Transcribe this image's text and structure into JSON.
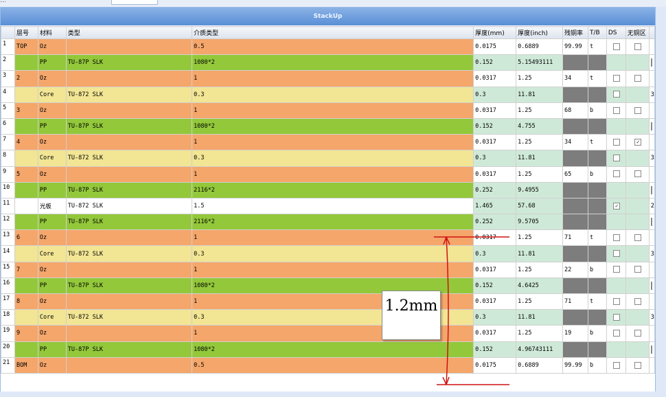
{
  "topbar": {
    "text": "…"
  },
  "panel": {
    "title": "StackUp"
  },
  "columns": [
    "",
    "层号",
    "材料",
    "类型",
    "介质类型",
    "厚度(mm)",
    "厚度(inch)",
    "残铜率",
    "T/B",
    "DS",
    "无铜区",
    ""
  ],
  "rows": [
    {
      "no": "1",
      "layer": "TOP",
      "mat": "Oz",
      "kind": "",
      "diel": "0.5",
      "tmm": "0.0175",
      "tin": "0.6889",
      "cu": "99.99",
      "tb": "t",
      "ds": false,
      "free": false,
      "type": "Oz"
    },
    {
      "no": "2",
      "layer": "",
      "mat": "PP",
      "kind": "TU-87P SLK",
      "diel": "1080*2",
      "tmm": "0.152",
      "tin": "5.15493111",
      "cu": "",
      "tb": "",
      "ds": null,
      "free": null,
      "type": "PP"
    },
    {
      "no": "3",
      "layer": "2",
      "mat": "Oz",
      "kind": "",
      "diel": "1",
      "tmm": "0.0317",
      "tin": "1.25",
      "cu": "34",
      "tb": "t",
      "ds": false,
      "free": false,
      "type": "Oz"
    },
    {
      "no": "4",
      "layer": "",
      "mat": "Core",
      "kind": "TU-872 SLK",
      "diel": "0.3",
      "tmm": "0.3",
      "tin": "11.81",
      "cu": "",
      "tb": "",
      "ds": false,
      "free": null,
      "type": "Core",
      "last": "3"
    },
    {
      "no": "5",
      "layer": "3",
      "mat": "Oz",
      "kind": "",
      "diel": "1",
      "tmm": "0.0317",
      "tin": "1.25",
      "cu": "68",
      "tb": "b",
      "ds": false,
      "free": false,
      "type": "Oz"
    },
    {
      "no": "6",
      "layer": "",
      "mat": "PP",
      "kind": "TU-87P SLK",
      "diel": "1080*2",
      "tmm": "0.152",
      "tin": "4.755",
      "cu": "",
      "tb": "",
      "ds": null,
      "free": null,
      "type": "PP"
    },
    {
      "no": "7",
      "layer": "4",
      "mat": "Oz",
      "kind": "",
      "diel": "1",
      "tmm": "0.0317",
      "tin": "1.25",
      "cu": "34",
      "tb": "t",
      "ds": false,
      "free": true,
      "type": "Oz"
    },
    {
      "no": "8",
      "layer": "",
      "mat": "Core",
      "kind": "TU-872 SLK",
      "diel": "0.3",
      "tmm": "0.3",
      "tin": "11.81",
      "cu": "",
      "tb": "",
      "ds": false,
      "free": null,
      "type": "Core",
      "last": "3"
    },
    {
      "no": "9",
      "layer": "5",
      "mat": "Oz",
      "kind": "",
      "diel": "1",
      "tmm": "0.0317",
      "tin": "1.25",
      "cu": "65",
      "tb": "b",
      "ds": false,
      "free": false,
      "type": "Oz"
    },
    {
      "no": "10",
      "layer": "",
      "mat": "PP",
      "kind": "TU-87P SLK",
      "diel": "2116*2",
      "tmm": "0.252",
      "tin": "9.4955",
      "cu": "",
      "tb": "",
      "ds": null,
      "free": null,
      "type": "PP"
    },
    {
      "no": "11",
      "layer": "",
      "mat": "光板",
      "kind": "TU-872 SLK",
      "diel": "1.5",
      "tmm": "1.465",
      "tin": "57.68",
      "cu": "",
      "tb": "",
      "ds": true,
      "free": null,
      "type": "Plate",
      "last": "2"
    },
    {
      "no": "12",
      "layer": "",
      "mat": "PP",
      "kind": "TU-87P SLK",
      "diel": "2116*2",
      "tmm": "0.252",
      "tin": "9.5705",
      "cu": "",
      "tb": "",
      "ds": null,
      "free": null,
      "type": "PP"
    },
    {
      "no": "13",
      "layer": "6",
      "mat": "Oz",
      "kind": "",
      "diel": "1",
      "tmm": "0.0317",
      "tin": "1.25",
      "cu": "71",
      "tb": "t",
      "ds": false,
      "free": false,
      "type": "Oz"
    },
    {
      "no": "14",
      "layer": "",
      "mat": "Core",
      "kind": "TU-872 SLK",
      "diel": "0.3",
      "tmm": "0.3",
      "tin": "11.81",
      "cu": "",
      "tb": "",
      "ds": false,
      "free": null,
      "type": "Core",
      "last": "3"
    },
    {
      "no": "15",
      "layer": "7",
      "mat": "Oz",
      "kind": "",
      "diel": "1",
      "tmm": "0.0317",
      "tin": "1.25",
      "cu": "22",
      "tb": "b",
      "ds": false,
      "free": false,
      "type": "Oz"
    },
    {
      "no": "16",
      "layer": "",
      "mat": "PP",
      "kind": "TU-87P SLK",
      "diel": "1080*2",
      "tmm": "0.152",
      "tin": "4.6425",
      "cu": "",
      "tb": "",
      "ds": null,
      "free": null,
      "type": "PP"
    },
    {
      "no": "17",
      "layer": "8",
      "mat": "Oz",
      "kind": "",
      "diel": "1",
      "tmm": "0.0317",
      "tin": "1.25",
      "cu": "71",
      "tb": "t",
      "ds": false,
      "free": false,
      "type": "Oz"
    },
    {
      "no": "18",
      "layer": "",
      "mat": "Core",
      "kind": "TU-872 SLK",
      "diel": "0.3",
      "tmm": "0.3",
      "tin": "11.81",
      "cu": "",
      "tb": "",
      "ds": false,
      "free": null,
      "type": "Core",
      "last": "3"
    },
    {
      "no": "19",
      "layer": "9",
      "mat": "Oz",
      "kind": "",
      "diel": "1",
      "tmm": "0.0317",
      "tin": "1.25",
      "cu": "19",
      "tb": "b",
      "ds": false,
      "free": false,
      "type": "Oz"
    },
    {
      "no": "20",
      "layer": "",
      "mat": "PP",
      "kind": "TU-87P SLK",
      "diel": "1080*2",
      "tmm": "0.152",
      "tin": "4.96743111",
      "cu": "",
      "tb": "",
      "ds": null,
      "free": null,
      "type": "PP"
    },
    {
      "no": "21",
      "layer": "BOM",
      "mat": "Oz",
      "kind": "",
      "diel": "0.5",
      "tmm": "0.0175",
      "tin": "0.6889",
      "cu": "99.99",
      "tb": "b",
      "ds": false,
      "free": false,
      "type": "Oz"
    }
  ],
  "annotation": {
    "label": "1.2mm"
  },
  "colors": {
    "oz": "#f5a66a",
    "pp": "#93c83a",
    "core": "#f2e594",
    "title": "#5a8fd6",
    "annot": "#d01010"
  }
}
